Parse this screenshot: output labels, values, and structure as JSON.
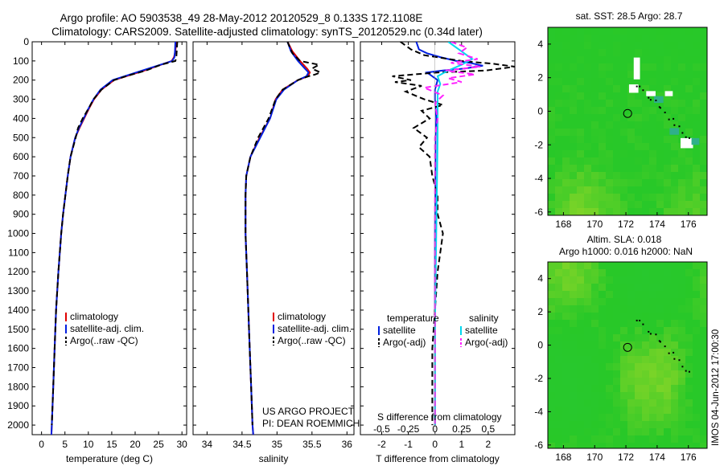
{
  "title_line1": "Argo profile: AO 5903538_49 28-May-2012 20120529_8 0.133S 172.1108E",
  "title_line2": "Climatology: CARS2009. Satellite-adjusted climatology: synTS_20120529.nc (0.34d later)",
  "depth_ticks": [
    0,
    100,
    200,
    300,
    400,
    500,
    600,
    700,
    800,
    900,
    1000,
    1100,
    1200,
    1300,
    1400,
    1500,
    1600,
    1700,
    1800,
    1900,
    2000
  ],
  "colors": {
    "climatology": "#e00000",
    "satellite": "#0020e0",
    "argo": "#000000",
    "sat_salinity": "#00d8f0",
    "argo_salinity": "#ff20ff",
    "map_green": "#33d233"
  },
  "chart_data": [
    {
      "type": "line",
      "id": "temperature",
      "xlabel": "temperature (deg C)",
      "xticks": [
        0,
        5,
        10,
        15,
        20,
        25,
        30
      ],
      "xlim": [
        -2,
        31
      ],
      "ylim": [
        2050,
        0
      ],
      "series": [
        {
          "name": "climatology",
          "depth": [
            0,
            50,
            80,
            100,
            150,
            200,
            250,
            300,
            350,
            400,
            450,
            500,
            600,
            700,
            800,
            900,
            1000,
            1200,
            1400,
            1600,
            1800,
            2000,
            2050
          ],
          "values": [
            28.8,
            28.6,
            28.3,
            27.8,
            22,
            15.5,
            12.8,
            11.2,
            10.1,
            9.1,
            8.1,
            7.2,
            6.2,
            5.6,
            5.1,
            4.6,
            4.2,
            3.6,
            3.1,
            2.8,
            2.5,
            2.2,
            2.1
          ]
        },
        {
          "name": "satellite-adj. clim.",
          "depth": [
            0,
            50,
            80,
            100,
            150,
            200,
            250,
            300,
            350,
            400,
            450,
            500,
            600,
            700,
            800,
            900,
            1000,
            1200,
            1400,
            1600,
            1800,
            2000,
            2050
          ],
          "values": [
            28.6,
            28.5,
            28.4,
            27.9,
            21.5,
            15.2,
            12.6,
            11.1,
            10,
            9,
            8,
            7.2,
            6.2,
            5.6,
            5.1,
            4.6,
            4.2,
            3.6,
            3.1,
            2.8,
            2.5,
            2.2,
            2.1
          ]
        },
        {
          "name": "Argo(..raw -QC)",
          "depth": [
            0,
            40,
            80,
            100,
            120,
            150,
            180,
            200,
            250,
            300,
            350,
            400,
            450,
            500,
            600,
            700,
            800,
            900,
            1000,
            1200,
            1400,
            1600,
            1800,
            2000
          ],
          "values": [
            29.0,
            28.9,
            28.8,
            28.6,
            25.5,
            22.3,
            18,
            15.5,
            12.8,
            11.1,
            10,
            8.8,
            7.8,
            7.3,
            6.2,
            5.6,
            5.1,
            4.6,
            4.2,
            3.6,
            3.1,
            2.8,
            2.5,
            2.2
          ]
        }
      ],
      "legend": [
        "climatology",
        "satellite-adj. clim.",
        "Argo(..raw -QC)"
      ]
    },
    {
      "type": "line",
      "id": "salinity",
      "xlabel": "salinity",
      "xticks": [
        34,
        34.5,
        35,
        35.5,
        36
      ],
      "xlim": [
        33.8,
        36.1
      ],
      "ylim": [
        2050,
        0
      ],
      "series": [
        {
          "name": "climatology",
          "depth": [
            0,
            50,
            100,
            140,
            160,
            180,
            200,
            250,
            300,
            400,
            500,
            600,
            700,
            800,
            1000,
            1200,
            1400,
            1600,
            1800,
            2000,
            2050
          ],
          "values": [
            35.15,
            35.22,
            35.33,
            35.43,
            35.47,
            35.44,
            35.3,
            35.08,
            34.98,
            34.9,
            34.75,
            34.62,
            34.56,
            34.55,
            34.55,
            34.57,
            34.59,
            34.61,
            34.63,
            34.65,
            34.66
          ]
        },
        {
          "name": "satellite-adj. clim.",
          "depth": [
            0,
            50,
            100,
            140,
            160,
            180,
            200,
            250,
            300,
            400,
            500,
            600,
            700,
            800,
            1000,
            1200,
            1400,
            1600,
            1800,
            2000,
            2050
          ],
          "values": [
            35.15,
            35.2,
            35.3,
            35.4,
            35.45,
            35.42,
            35.3,
            35.1,
            34.99,
            34.9,
            34.76,
            34.62,
            34.56,
            34.55,
            34.55,
            34.57,
            34.59,
            34.61,
            34.63,
            34.65,
            34.66
          ]
        },
        {
          "name": "Argo(..raw -QC)",
          "depth": [
            0,
            60,
            100,
            120,
            140,
            160,
            170,
            180,
            200,
            250,
            300,
            400,
            500,
            600,
            700,
            800,
            1000,
            1200,
            1400,
            1600,
            1800,
            2000
          ],
          "values": [
            35.15,
            35.22,
            35.33,
            35.6,
            35.5,
            35.62,
            35.55,
            35.45,
            35.3,
            35.08,
            34.98,
            34.88,
            34.73,
            34.62,
            34.56,
            34.55,
            34.55,
            34.57,
            34.59,
            34.61,
            34.63,
            34.65
          ]
        }
      ],
      "legend": [
        "climatology",
        "satellite-adj. clim.",
        "Argo(..raw -QC)"
      ],
      "annotation": [
        "US ARGO PROJECT",
        "PI: DEAN ROEMMICH"
      ]
    },
    {
      "type": "line",
      "id": "differences",
      "xlabel": "T difference from climatology",
      "xlabel_top": "S difference from climatology",
      "xticks": [
        -2,
        -1,
        0,
        1,
        2
      ],
      "xticks_top": [
        "-0.5",
        "-0.25",
        "0",
        "0.25",
        "0.5"
      ],
      "xticks_top_values": [
        -2,
        -1,
        0,
        1,
        2
      ],
      "xlim": [
        -2.8,
        3.0
      ],
      "ylim": [
        2050,
        0
      ],
      "legend_headers": [
        "temperature",
        "salinity"
      ],
      "series": [
        {
          "name": "satellite",
          "group": "temperature",
          "depth": [
            0,
            40,
            60,
            80,
            100,
            110,
            125,
            140,
            150,
            160,
            180,
            200,
            250,
            300,
            400,
            500,
            1000,
            1500,
            2000
          ],
          "values": [
            -0.7,
            -0.6,
            -0.3,
            0.2,
            0.8,
            1.3,
            1.8,
            1.1,
            0.3,
            -0.3,
            -0.1,
            0.1,
            0.0,
            0.0,
            0.05,
            0.02,
            0.0,
            0.0,
            0.0
          ]
        },
        {
          "name": "Argo(-adj)",
          "group": "temperature",
          "depth": [
            0,
            40,
            70,
            100,
            115,
            130,
            150,
            160,
            180,
            200,
            210,
            230,
            260,
            300,
            330,
            360,
            400,
            450,
            500,
            550,
            600,
            700,
            800,
            900,
            1000,
            1100,
            1200,
            1400,
            1600,
            1800,
            2000
          ],
          "values": [
            -1.3,
            -0.9,
            -0.4,
            1.0,
            2.2,
            3.0,
            1.9,
            0.1,
            -1.6,
            -0.9,
            -1.5,
            -0.5,
            -1.1,
            -0.4,
            0.3,
            -0.5,
            -0.2,
            -0.8,
            -0.3,
            -0.6,
            -0.2,
            -0.1,
            0.1,
            0.1,
            0.3,
            0.2,
            0.1,
            0.0,
            -0.1,
            -0.1,
            -0.1
          ]
        },
        {
          "name": "satellite",
          "group": "salinity",
          "depth": [
            0,
            50,
            90,
            120,
            150,
            180,
            220,
            260,
            300,
            500,
            1000,
            1500,
            2000
          ],
          "values": [
            0.5,
            1.0,
            1.4,
            1.0,
            0.5,
            0.1,
            0.2,
            0.1,
            0.1,
            0.1,
            0.05,
            0.0,
            0.0
          ]
        },
        {
          "name": "Argo(-adj)",
          "group": "salinity",
          "depth": [
            0,
            30,
            60,
            90,
            110,
            130,
            150,
            170,
            190,
            210,
            240,
            280,
            320,
            400,
            500,
            800,
            1200,
            1600,
            2000
          ],
          "values": [
            0.6,
            1.2,
            0.9,
            1.6,
            0.6,
            1.7,
            0.4,
            1.5,
            0.5,
            1.0,
            -0.4,
            0.3,
            0.0,
            0.1,
            0.0,
            0.0,
            0.0,
            0.0,
            0.0
          ]
        }
      ],
      "annotation": [
        "S difference from climatology"
      ]
    }
  ],
  "maps": [
    {
      "id": "sst",
      "title": "sat. SST: 28.5  Argo: 28.7",
      "xticks": [
        168,
        170,
        172,
        174,
        176
      ],
      "yticks": [
        4,
        2,
        0,
        -2,
        -4,
        -6
      ],
      "xlim": [
        167,
        177.2
      ],
      "ylim": [
        -6.2,
        5.0
      ],
      "float_position": [
        172.11,
        -0.133
      ]
    },
    {
      "id": "sla",
      "title_line1": "Altim. SLA: 0.018",
      "title_line2": "Argo h1000: 0.016 h2000: NaN",
      "xticks": [
        168,
        170,
        172,
        174,
        176
      ],
      "yticks": [
        4,
        2,
        0,
        -2,
        -4,
        -6
      ],
      "xlim": [
        167,
        177.2
      ],
      "ylim": [
        -6.2,
        5.0
      ],
      "float_position": [
        172.11,
        -0.133
      ]
    }
  ],
  "footer_stamp": "IMOS 04-Jun-2012 17:00:30"
}
